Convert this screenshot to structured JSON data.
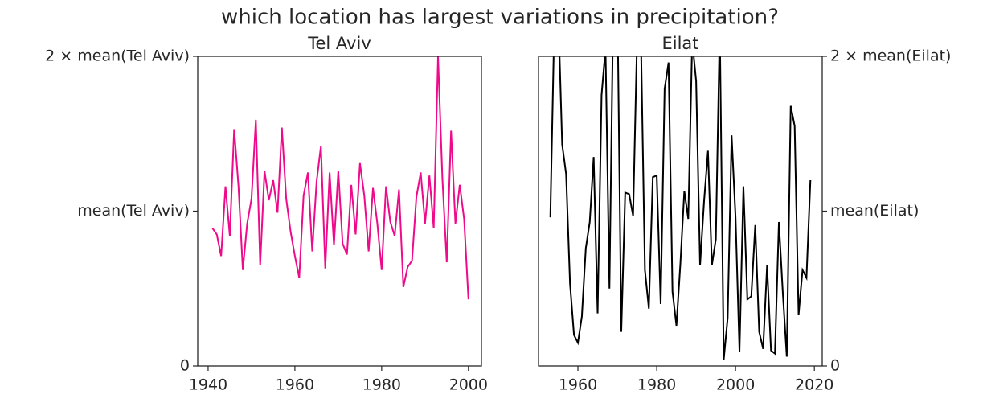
{
  "title": "which location has largest variations in precipitation?",
  "chart_data": [
    {
      "type": "line",
      "title": "Tel Aviv",
      "color": "#ee0a8a",
      "yaxis_side": "left",
      "xlim": [
        1937.6,
        2003
      ],
      "xticks": [
        1940,
        1960,
        1980,
        2000
      ],
      "ylim": [
        0,
        2
      ],
      "yticks": [
        0,
        {
          "value": 1,
          "label": "mean(Tel Aviv)"
        },
        {
          "value": 2,
          "label": "2 ×  mean(Tel Aviv)"
        }
      ],
      "x": [
        1941,
        1942,
        1943,
        1944,
        1945,
        1946,
        1947,
        1948,
        1949,
        1950,
        1951,
        1952,
        1953,
        1954,
        1955,
        1956,
        1957,
        1958,
        1959,
        1960,
        1961,
        1962,
        1963,
        1964,
        1965,
        1966,
        1967,
        1968,
        1969,
        1970,
        1971,
        1972,
        1973,
        1974,
        1975,
        1976,
        1977,
        1978,
        1979,
        1980,
        1981,
        1982,
        1983,
        1984,
        1985,
        1986,
        1987,
        1988,
        1989,
        1990,
        1991,
        1992,
        1993,
        1994,
        1995,
        1996,
        1997,
        1998,
        1999,
        2000
      ],
      "values": [
        0.89,
        0.85,
        0.71,
        1.16,
        0.84,
        1.53,
        1.16,
        0.62,
        0.92,
        1.08,
        1.59,
        0.65,
        1.26,
        1.07,
        1.2,
        0.99,
        1.54,
        1.08,
        0.87,
        0.71,
        0.57,
        1.1,
        1.25,
        0.74,
        1.19,
        1.42,
        0.63,
        1.25,
        0.78,
        1.26,
        0.79,
        0.72,
        1.17,
        0.85,
        1.31,
        1.1,
        0.74,
        1.15,
        0.92,
        0.62,
        1.16,
        0.93,
        0.84,
        1.14,
        0.51,
        0.64,
        0.68,
        1.09,
        1.25,
        0.92,
        1.23,
        0.89,
        2.0,
        1.21,
        0.67,
        1.52,
        0.92,
        1.17,
        0.95,
        0.43
      ]
    },
    {
      "type": "line",
      "title": "Eilat",
      "color": "#000000",
      "yaxis_side": "right",
      "xlim": [
        1950,
        2022
      ],
      "xticks": [
        1960,
        1980,
        2000,
        2020
      ],
      "ylim": [
        0,
        2
      ],
      "yticks": [
        0,
        {
          "value": 1,
          "label": "mean(Eilat)"
        },
        {
          "value": 2,
          "label": "2 ×  mean(Eilat)"
        }
      ],
      "x": [
        1953,
        1954,
        1955,
        1956,
        1957,
        1958,
        1959,
        1960,
        1961,
        1962,
        1963,
        1964,
        1965,
        1966,
        1967,
        1968,
        1969,
        1970,
        1971,
        1972,
        1973,
        1974,
        1975,
        1976,
        1977,
        1978,
        1979,
        1980,
        1981,
        1982,
        1983,
        1984,
        1985,
        1986,
        1987,
        1988,
        1989,
        1990,
        1991,
        1992,
        1993,
        1994,
        1995,
        1996,
        1997,
        1998,
        1999,
        2000,
        2001,
        2002,
        2003,
        2004,
        2005,
        2006,
        2007,
        2008,
        2009,
        2010,
        2011,
        2012,
        2013,
        2014,
        2015,
        2016,
        2017,
        2018,
        2019
      ],
      "values": [
        0.96,
        2.2,
        2.3,
        1.43,
        1.24,
        0.53,
        0.2,
        0.15,
        0.32,
        0.76,
        0.93,
        1.35,
        0.34,
        1.75,
        2.05,
        0.5,
        2.4,
        2.4,
        0.22,
        1.12,
        1.11,
        0.97,
        2.1,
        2.1,
        0.62,
        0.37,
        1.22,
        1.23,
        0.4,
        1.79,
        1.96,
        0.48,
        0.26,
        0.66,
        1.13,
        0.95,
        2.1,
        1.84,
        0.65,
        1.06,
        1.39,
        0.65,
        0.82,
        2.2,
        0.04,
        0.31,
        1.49,
        0.96,
        0.09,
        1.16,
        0.43,
        0.45,
        0.91,
        0.22,
        0.11,
        0.65,
        0.1,
        0.08,
        0.93,
        0.47,
        0.06,
        1.68,
        1.55,
        0.33,
        0.62,
        0.57,
        1.2
      ]
    }
  ]
}
